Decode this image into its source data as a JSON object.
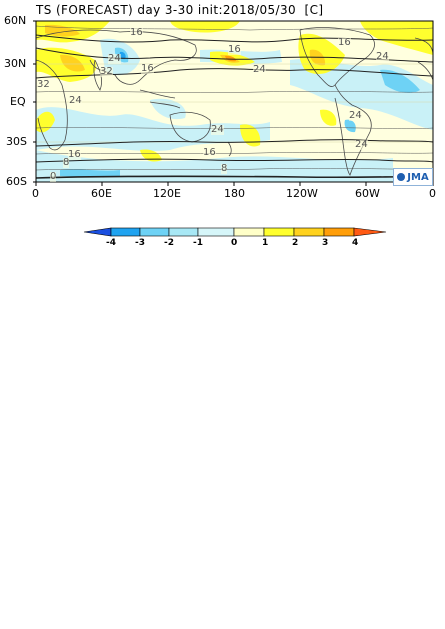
{
  "header": {
    "title": "TS (FORECAST) day 3-30 init:2018/05/30  [C]"
  },
  "map": {
    "lat_labels": [
      "60N",
      "30N",
      "EQ",
      "30S",
      "60S"
    ],
    "lon_labels": [
      "0",
      "60E",
      "120E",
      "180",
      "120W",
      "60W",
      "0"
    ],
    "contour_labels": [
      "16",
      "16",
      "24",
      "24",
      "32",
      "16",
      "32",
      "24",
      "24",
      "24",
      "16",
      "24",
      "16",
      "8",
      "0",
      "8",
      "16",
      "24"
    ],
    "logo_text": "JMA"
  },
  "colorbar": {
    "labels": [
      "-4",
      "-3",
      "-2",
      "-1",
      "0",
      "1",
      "2",
      "3",
      "4"
    ],
    "colors": {
      "minus4": "#1a4fe0",
      "minus3": "#1fa3f0",
      "minus2": "#6ed2f5",
      "minus1": "#c9f1f7",
      "plus1": "#ffff2e",
      "plus2": "#ffd21e",
      "plus3": "#ff9e0a",
      "plus4": "#ff5a14",
      "neutral": "#ffffdf"
    }
  }
}
